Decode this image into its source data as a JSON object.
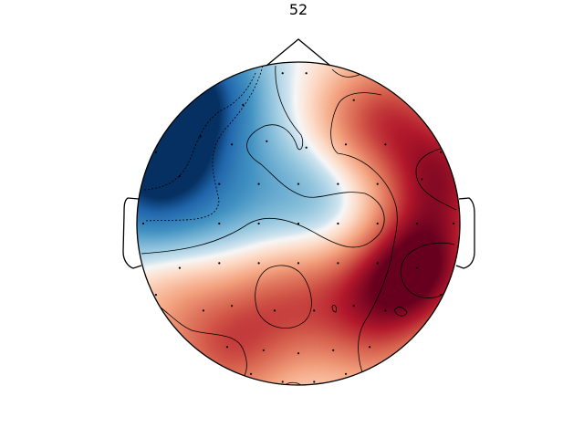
{
  "chart_data": {
    "type": "heatmap",
    "title": "52",
    "xlabel": "",
    "ylabel": "",
    "colormap": {
      "name": "RdBu_r",
      "stops": [
        {
          "at": 0.0,
          "color": "#053061"
        },
        {
          "at": 0.1,
          "color": "#2166ac"
        },
        {
          "at": 0.25,
          "color": "#4393c3"
        },
        {
          "at": 0.38,
          "color": "#92c5de"
        },
        {
          "at": 0.47,
          "color": "#d1e5f0"
        },
        {
          "at": 0.5,
          "color": "#f7f7f7"
        },
        {
          "at": 0.57,
          "color": "#fddbc7"
        },
        {
          "at": 0.68,
          "color": "#f4a582"
        },
        {
          "at": 0.8,
          "color": "#d6604d"
        },
        {
          "at": 0.9,
          "color": "#b2182b"
        },
        {
          "at": 1.0,
          "color": "#67001f"
        }
      ]
    },
    "value_range": [
      -1,
      1
    ],
    "sources": [
      {
        "x": -0.85,
        "y": 0.55,
        "value": -1.0
      },
      {
        "x": -0.6,
        "y": 0.85,
        "value": -0.8
      },
      {
        "x": -0.95,
        "y": 0.15,
        "value": -0.65
      },
      {
        "x": -0.45,
        "y": 0.15,
        "value": -0.35
      },
      {
        "x": 0.25,
        "y": 0.05,
        "value": -0.3
      },
      {
        "x": 0.05,
        "y": 0.3,
        "value": -0.25
      },
      {
        "x": 0.9,
        "y": 0.3,
        "value": 0.8
      },
      {
        "x": 0.75,
        "y": -0.28,
        "value": 1.0
      },
      {
        "x": 0.35,
        "y": 0.55,
        "value": 0.45
      },
      {
        "x": 0.6,
        "y": 0.75,
        "value": 0.4
      },
      {
        "x": -0.1,
        "y": -0.48,
        "value": 0.5
      },
      {
        "x": 0.45,
        "y": -0.7,
        "value": 0.45
      },
      {
        "x": -0.45,
        "y": -0.82,
        "value": 0.55
      },
      {
        "x": -0.8,
        "y": -0.45,
        "value": 0.3
      },
      {
        "x": 0.35,
        "y": -0.3,
        "value": 0.35
      }
    ],
    "sensors": [
      [
        -0.1,
        0.95
      ],
      [
        0.05,
        0.95
      ],
      [
        -0.35,
        0.75
      ],
      [
        0.35,
        0.78
      ],
      [
        -0.62,
        0.55
      ],
      [
        -0.42,
        0.5
      ],
      [
        -0.2,
        0.52
      ],
      [
        0.05,
        0.48
      ],
      [
        0.3,
        0.5
      ],
      [
        0.55,
        0.5
      ],
      [
        -0.75,
        0.3
      ],
      [
        -0.5,
        0.25
      ],
      [
        -0.25,
        0.25
      ],
      [
        0.0,
        0.25
      ],
      [
        0.25,
        0.25
      ],
      [
        0.5,
        0.25
      ],
      [
        0.78,
        0.28
      ],
      [
        -0.98,
        0.0
      ],
      [
        -0.5,
        0.0
      ],
      [
        -0.25,
        0.0
      ],
      [
        0.0,
        0.0
      ],
      [
        0.25,
        0.0
      ],
      [
        0.5,
        0.0
      ],
      [
        0.75,
        0.0
      ],
      [
        0.98,
        0.0
      ],
      [
        -0.75,
        -0.28
      ],
      [
        -0.5,
        -0.25
      ],
      [
        -0.25,
        -0.25
      ],
      [
        0.0,
        -0.25
      ],
      [
        0.25,
        -0.25
      ],
      [
        0.5,
        -0.25
      ],
      [
        0.75,
        -0.28
      ],
      [
        -0.6,
        -0.55
      ],
      [
        -0.42,
        -0.52
      ],
      [
        -0.15,
        -0.55
      ],
      [
        0.1,
        -0.55
      ],
      [
        0.35,
        -0.52
      ],
      [
        0.55,
        -0.55
      ],
      [
        -0.45,
        -0.78
      ],
      [
        -0.22,
        -0.8
      ],
      [
        0.0,
        -0.82
      ],
      [
        0.22,
        -0.8
      ],
      [
        0.45,
        -0.78
      ],
      [
        -0.3,
        -0.95
      ],
      [
        -0.1,
        -1.0
      ],
      [
        0.1,
        -1.0
      ],
      [
        0.3,
        -0.95
      ],
      [
        -0.9,
        0.45
      ],
      [
        0.9,
        0.45
      ],
      [
        -0.9,
        -0.45
      ],
      [
        0.9,
        -0.45
      ]
    ]
  }
}
